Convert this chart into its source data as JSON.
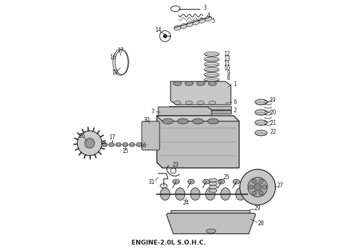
{
  "caption": "ENGINE-2.0L S.O.H.C.",
  "caption_fontsize": 6.5,
  "bg_color": "#ffffff",
  "fig_width": 4.9,
  "fig_height": 3.6,
  "dpi": 100,
  "line_color": "#222222",
  "label_fontsize": 5.5
}
